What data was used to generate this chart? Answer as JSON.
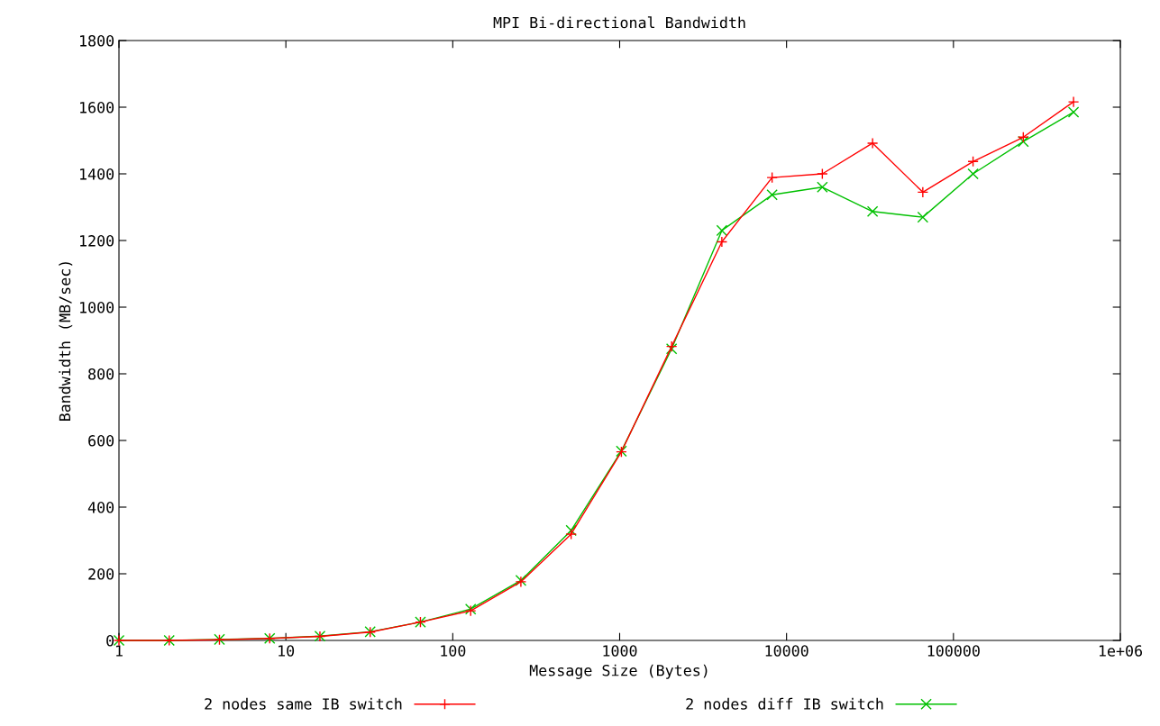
{
  "chart_data": {
    "type": "line",
    "title": "MPI Bi-directional Bandwidth",
    "xlabel": "Message Size (Bytes)",
    "ylabel": "Bandwidth (MB/sec)",
    "x": [
      1,
      2,
      4,
      8,
      16,
      32,
      64,
      128,
      256,
      512,
      1024,
      2048,
      4096,
      8192,
      16384,
      32768,
      65536,
      131072,
      262144,
      524288
    ],
    "series": [
      {
        "name": "2 nodes same IB switch",
        "color": "#ff0000",
        "marker": "plus",
        "values": [
          0,
          0,
          2,
          6,
          12,
          25,
          55,
          89,
          176,
          319,
          566,
          882,
          1196,
          1389,
          1400,
          1492,
          1345,
          1437,
          1510,
          1616
        ]
      },
      {
        "name": "2 nodes diff IB switch",
        "color": "#00c000",
        "marker": "cross",
        "values": [
          0,
          0,
          3,
          6,
          13,
          26,
          55,
          94,
          180,
          330,
          568,
          875,
          1230,
          1337,
          1360,
          1287,
          1270,
          1400,
          1497,
          1585
        ]
      }
    ],
    "log": "x",
    "xlim": [
      1,
      1000000
    ],
    "xticks": [
      1,
      10,
      100,
      1000,
      10000,
      100000,
      {
        "value": 1000000,
        "label": "1e+06"
      }
    ],
    "ylim": [
      0,
      1800
    ],
    "yticks": [
      0,
      200,
      400,
      600,
      800,
      1000,
      1200,
      1400,
      1600,
      1800
    ],
    "grid": false,
    "legend": "bottom"
  }
}
